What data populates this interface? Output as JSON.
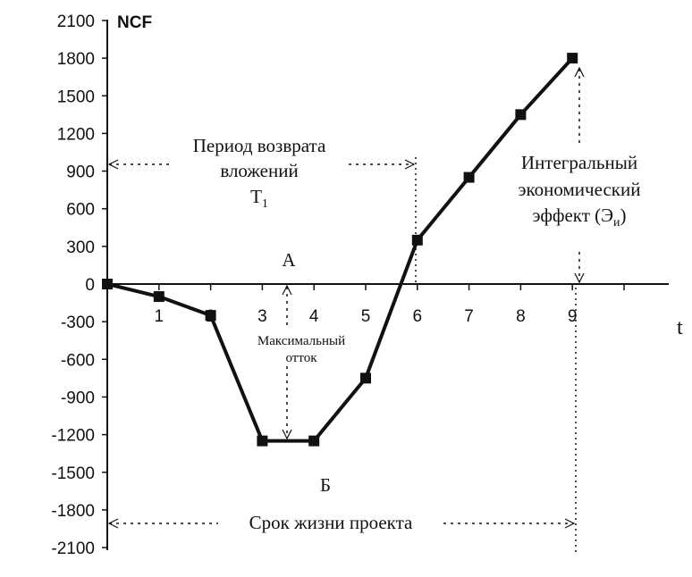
{
  "chart_data": {
    "type": "line",
    "title": "",
    "ylabel": "NCF",
    "xlabel": "t",
    "x": [
      0,
      1,
      2,
      3,
      4,
      5,
      6,
      7,
      8,
      9
    ],
    "values": [
      0,
      -100,
      -250,
      -1250,
      -1250,
      -750,
      350,
      850,
      1350,
      1800
    ],
    "ylim": [
      -2100,
      2100
    ],
    "xlim": [
      0,
      9
    ],
    "yticks": [
      2100,
      1800,
      1500,
      1200,
      900,
      600,
      300,
      0,
      -300,
      -600,
      -900,
      -1200,
      -1500,
      -1800,
      -2100
    ],
    "ytick_labels": [
      "2100",
      "1800",
      "1500",
      "1200",
      "900",
      "600",
      "300",
      "0",
      "-300",
      "-600",
      "-900",
      "-1200",
      "-1500",
      "-1800",
      "-2100"
    ],
    "xtick_labels": [
      "1",
      "2",
      "3",
      "4",
      "5",
      "6",
      "7",
      "8",
      "9"
    ],
    "grid": false,
    "line_color": "#111111",
    "annotations": {
      "payback_line1": "Период возврата",
      "payback_line2": "вложений",
      "payback_symbol": "T",
      "payback_subscript": "1",
      "integral_line1": "Интегральный",
      "integral_line2": "экономический",
      "integral_line3": "эффект  (Э",
      "integral_subscript": "и",
      "integral_close": ")",
      "point_a": "А",
      "point_b": "Б",
      "max_outflow_line1": "Максимальный",
      "max_outflow_line2": "отток",
      "lifetime": "Срок жизни проекта"
    }
  }
}
